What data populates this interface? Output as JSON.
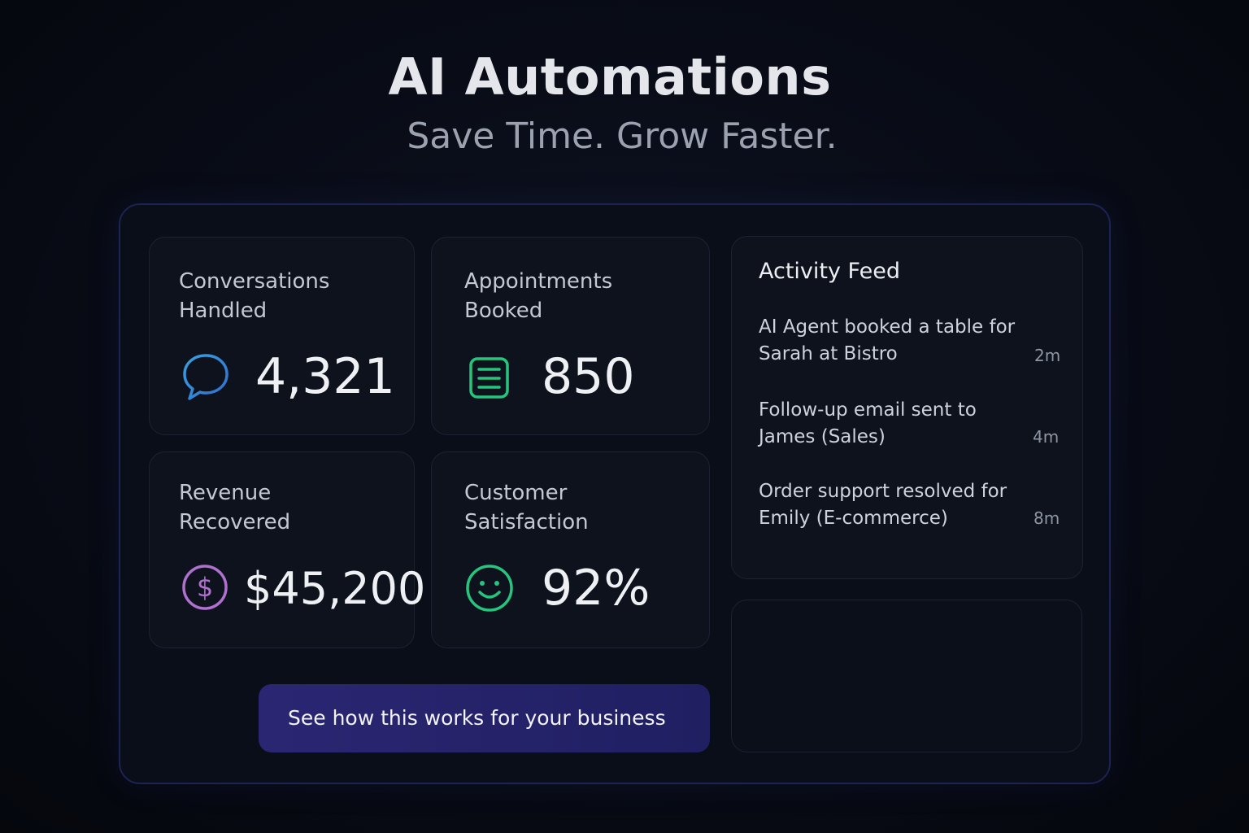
{
  "header": {
    "title": "AI Automations",
    "subtitle": "Save Time. Grow Faster."
  },
  "stats": [
    {
      "label": "Conversations Handled",
      "value": "4,321"
    },
    {
      "label": "Appointments Booked",
      "value": "850"
    },
    {
      "label": "Revenue Recovered",
      "value": "$45,200"
    },
    {
      "label": "Customer Satisfaction",
      "value": "92%"
    }
  ],
  "activity_feed": {
    "title": "Activity Feed",
    "items": [
      {
        "text": "AI Agent booked a table for Sarah at Bistro",
        "time": "2m"
      },
      {
        "text": "Follow-up email sent to James (Sales)",
        "time": "4m"
      },
      {
        "text": "Order support resolved for Emily (E-commerce)",
        "time": "8m"
      }
    ]
  },
  "cta": {
    "label": "See how this works for your business"
  }
}
